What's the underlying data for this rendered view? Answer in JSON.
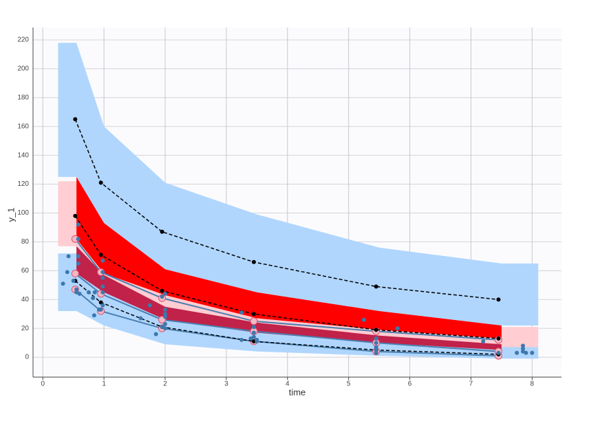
{
  "chart_data": {
    "type": "line",
    "x_label": "time",
    "y_label": "y_1",
    "xlim": [
      -0.16,
      8.48
    ],
    "ylim": [
      -13.8,
      228.6
    ],
    "xticks": [
      0,
      1,
      2,
      3,
      4,
      5,
      6,
      7,
      8
    ],
    "yticks": [
      0,
      20,
      40,
      60,
      80,
      100,
      120,
      140,
      160,
      180,
      200,
      220
    ],
    "grid": true,
    "bands": [
      {
        "color": "#b0d6fd",
        "x": [
          0.25,
          0.55,
          0.55,
          1.0,
          2.0,
          3.5,
          5.5,
          7.5,
          8.1
        ],
        "lower": [
          125,
          125,
          125,
          93,
          61,
          45,
          32,
          22,
          22
        ],
        "upper": [
          218,
          218,
          218,
          160,
          121,
          99,
          76,
          65,
          65
        ]
      },
      {
        "color": "#b0d6fd",
        "x": [
          0.25,
          0.55,
          1.0,
          2.0,
          3.5,
          5.5,
          7.5,
          8.1
        ],
        "lower": [
          32,
          32,
          22,
          9,
          4,
          1,
          -1,
          -1
        ],
        "upper": [
          72,
          72,
          55,
          33,
          22,
          14,
          8,
          7
        ]
      },
      {
        "color": "#ffcdd2",
        "x": [
          0.25,
          0.55
        ],
        "lower": [
          77,
          77
        ],
        "upper": [
          122,
          122
        ]
      },
      {
        "color": "#ffcdd2",
        "x": [
          7.5,
          8.1
        ],
        "lower": [
          7,
          7
        ],
        "upper": [
          21,
          21
        ]
      },
      {
        "color": "#ff0000",
        "x": [
          0.55,
          1.0,
          2.0,
          3.5,
          5.5,
          7.5
        ],
        "lower": [
          82,
          58,
          43,
          27,
          19,
          13
        ],
        "upper": [
          125,
          93,
          61,
          45,
          32,
          22
        ]
      },
      {
        "color": "#ffcdd2",
        "x": [
          0.55,
          1.0,
          2.0,
          3.5,
          5.5,
          7.5
        ],
        "lower": [
          77,
          57,
          35,
          24,
          15,
          9
        ],
        "upper": [
          82,
          58,
          43,
          27,
          19,
          13
        ]
      },
      {
        "color": "#c0224a",
        "x": [
          0.55,
          1.0,
          2.0,
          3.5,
          5.5,
          7.5
        ],
        "lower": [
          58,
          45,
          26,
          17,
          10,
          5
        ],
        "upper": [
          77,
          57,
          35,
          24,
          15,
          9
        ]
      }
    ],
    "series": [
      {
        "color": "#4a7fb0",
        "dash": false,
        "marker_ring": "#e05070",
        "x": [
          0.53,
          0.95,
          1.95,
          3.45,
          5.45,
          7.45
        ],
        "values": [
          82,
          59,
          41,
          25,
          18,
          12
        ]
      },
      {
        "color": "#4a7fb0",
        "dash": false,
        "marker_ring": "#e05070",
        "x": [
          0.53,
          0.95,
          1.95,
          3.45,
          5.45,
          7.45
        ],
        "values": [
          58,
          44,
          26,
          18,
          10,
          4
        ]
      },
      {
        "color": "#4a7fb0",
        "dash": false,
        "marker_ring": "#e05070",
        "x": [
          0.53,
          0.95,
          1.95,
          3.45,
          5.45,
          7.45
        ],
        "values": [
          47,
          32,
          20,
          11,
          4,
          1
        ]
      },
      {
        "color": "#000000",
        "dash": true,
        "x": [
          0.53,
          0.95,
          1.95,
          3.45,
          5.45,
          7.45
        ],
        "values": [
          165,
          121,
          87,
          66,
          49,
          40
        ]
      },
      {
        "color": "#000000",
        "dash": true,
        "x": [
          0.53,
          0.95,
          1.95,
          3.45,
          5.45,
          7.45
        ],
        "values": [
          98,
          71,
          46,
          30,
          19,
          13
        ]
      },
      {
        "color": "#000000",
        "dash": true,
        "x": [
          0.53,
          0.95,
          1.95,
          3.45,
          5.45,
          7.45
        ],
        "values": [
          53,
          38,
          21,
          11,
          5,
          2
        ]
      }
    ],
    "points": {
      "color": "#3d78ad",
      "x": [
        0.33,
        0.4,
        0.42,
        0.5,
        0.55,
        0.58,
        0.58,
        0.58,
        0.58,
        0.55,
        0.6,
        0.75,
        0.82,
        0.84,
        0.85,
        0.95,
        0.98,
        0.98,
        0.98,
        0.98,
        0.98,
        0.98,
        0.92,
        1.6,
        1.75,
        1.85,
        1.95,
        1.95,
        2.0,
        2.0,
        2.0,
        2.0,
        2.0,
        2.0,
        3.25,
        3.25,
        3.4,
        3.45,
        3.45,
        3.45,
        3.5,
        3.5,
        5.25,
        5.45,
        5.45,
        5.45,
        5.45,
        5.45,
        5.8,
        7.2,
        7.45,
        7.85,
        7.85,
        7.9,
        7.75,
        8.0,
        7.85
      ],
      "values": [
        51,
        59,
        70,
        53,
        47,
        92,
        82,
        70,
        65,
        45,
        44,
        45,
        41,
        29,
        45,
        33,
        67,
        59,
        55,
        49,
        45,
        36,
        33,
        27,
        36,
        16,
        42,
        21,
        44,
        33,
        30,
        28,
        23,
        20,
        31,
        12,
        13,
        21,
        17,
        14,
        11,
        12,
        26,
        13,
        10,
        7,
        5,
        3,
        20,
        11,
        3,
        8,
        4,
        3,
        3,
        3,
        6
      ]
    }
  }
}
